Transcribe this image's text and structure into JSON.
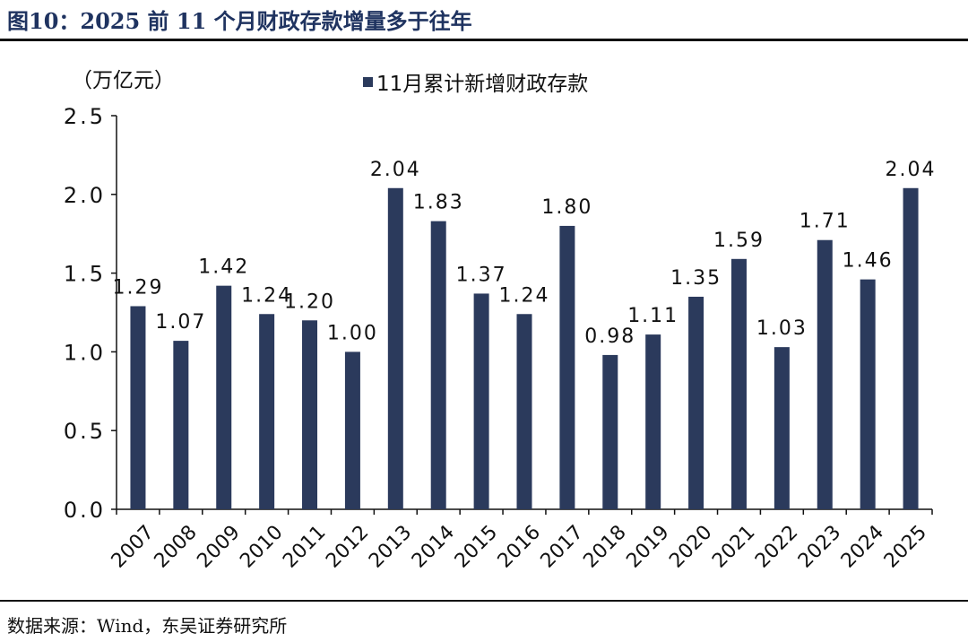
{
  "header": {
    "title": "图10：2025 前 11 个月财政存款增量多于往年"
  },
  "footer": {
    "source": "数据来源：Wind，东吴证券研究所"
  },
  "chart_data": {
    "type": "bar",
    "title": "",
    "ylabel": "（万亿元）",
    "xlabel": "",
    "ylim": [
      0,
      2.5
    ],
    "yticks": [
      "0.0",
      "0.5",
      "1.0",
      "1.5",
      "2.0",
      "2.5"
    ],
    "legend": "top-center",
    "grid": false,
    "bar_color": "#2b3a5c",
    "categories": [
      "2007",
      "2008",
      "2009",
      "2010",
      "2011",
      "2012",
      "2013",
      "2014",
      "2015",
      "2016",
      "2017",
      "2018",
      "2019",
      "2020",
      "2021",
      "2022",
      "2023",
      "2024",
      "2025"
    ],
    "series": [
      {
        "name": "11月累计新增财政存款",
        "values": [
          1.29,
          1.07,
          1.42,
          1.24,
          1.2,
          1.0,
          2.04,
          1.83,
          1.37,
          1.24,
          1.8,
          0.98,
          1.11,
          1.35,
          1.59,
          1.03,
          1.71,
          1.46,
          2.04
        ],
        "labels": [
          "1.29",
          "1.07",
          "1.42",
          "1.24",
          "1.20",
          "1.00",
          "2.04",
          "1.83",
          "1.37",
          "1.24",
          "1.80",
          "0.98",
          "1.11",
          "1.35",
          "1.59",
          "1.03",
          "1.71",
          "1.46",
          "2.04"
        ]
      }
    ]
  }
}
